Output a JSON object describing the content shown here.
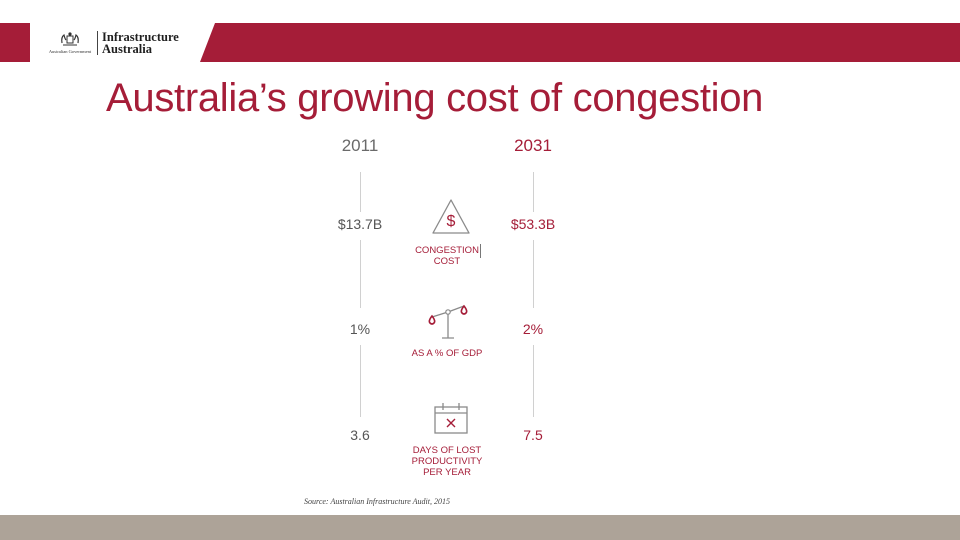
{
  "header": {
    "brand_color": "#a51d38",
    "logo": {
      "government_label": "Australian Government",
      "agency_name_line1": "Infrastructure",
      "agency_name_line2": "Australia",
      "crest_icon": "coat-of-arms-icon"
    }
  },
  "title": "Australia’s growing cost of congestion",
  "columns": {
    "left_year": "2011",
    "right_year": "2031"
  },
  "metrics": [
    {
      "left_value": "$13.7B",
      "right_value": "$53.3B",
      "caption_line1": "CONGESTION",
      "caption_line2": "COST",
      "icon": "dollar-warning-icon"
    },
    {
      "left_value": "1%",
      "right_value": "2%",
      "caption_line1": "AS A % OF GDP",
      "icon": "scales-icon"
    },
    {
      "left_value": "3.6",
      "right_value": "7.5",
      "caption_line1": "DAYS OF LOST",
      "caption_line2": "PRODUCTIVITY",
      "caption_line3": "PER YEAR",
      "icon": "calendar-x-icon"
    }
  ],
  "source": "Source: Australian Infrastructure Audit, 2015",
  "footer": {
    "color": "#ada398"
  }
}
